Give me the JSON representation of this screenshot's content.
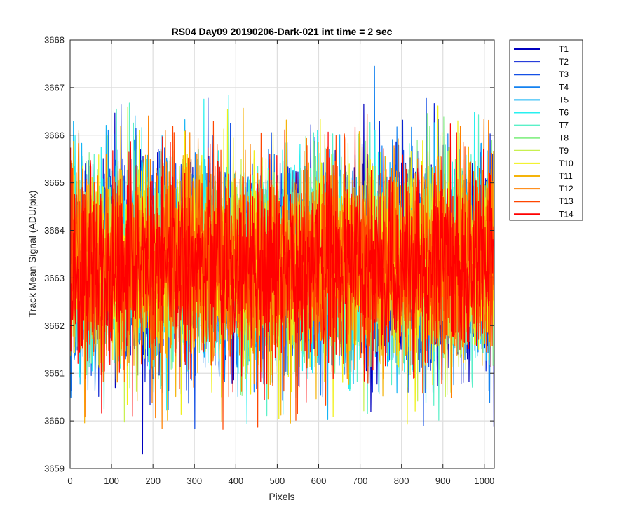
{
  "chart_data": {
    "type": "line",
    "title": "RS04 Day09 20190206-Dark-021 int time = 2 sec",
    "xlabel": "Pixels",
    "ylabel": "Track Mean Signal (ADU/pix)",
    "xlim": [
      0,
      1024
    ],
    "ylim": [
      3659,
      3668
    ],
    "xticks": [
      0,
      100,
      200,
      300,
      400,
      500,
      600,
      700,
      800,
      900,
      1000
    ],
    "yticks": [
      3659,
      3660,
      3661,
      3662,
      3663,
      3664,
      3665,
      3666,
      3667,
      3668
    ],
    "grid": true,
    "legend_position": "outside-top-right",
    "n_points_per_series": 1024,
    "series_center": 3663.3,
    "series_noise_sd": 1.05,
    "series": [
      {
        "name": "T1",
        "color": "#0000bf"
      },
      {
        "name": "T2",
        "color": "#0a23d4"
      },
      {
        "name": "T3",
        "color": "#1450e6"
      },
      {
        "name": "T4",
        "color": "#1482f0"
      },
      {
        "name": "T5",
        "color": "#14b4f5"
      },
      {
        "name": "T6",
        "color": "#28f0f0"
      },
      {
        "name": "T7",
        "color": "#5af0c8"
      },
      {
        "name": "T8",
        "color": "#8cf08c"
      },
      {
        "name": "T9",
        "color": "#c8f050"
      },
      {
        "name": "T10",
        "color": "#f0f014"
      },
      {
        "name": "T11",
        "color": "#f5b40a"
      },
      {
        "name": "T12",
        "color": "#ff8000"
      },
      {
        "name": "T13",
        "color": "#ff4600"
      },
      {
        "name": "T14",
        "color": "#ff0000"
      }
    ],
    "annotations": {
      "min_point": {
        "series": "T1",
        "x": 175,
        "y": 3659.3
      },
      "max_point": {
        "series": "T4",
        "x": 735,
        "y": 3667.45
      }
    }
  }
}
